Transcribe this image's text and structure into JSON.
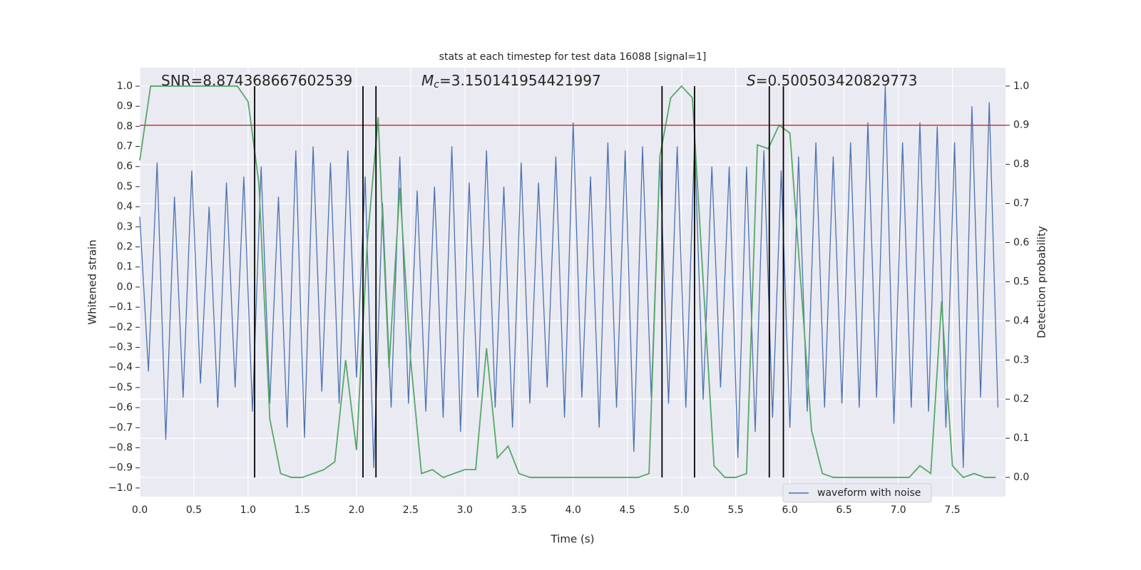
{
  "chart_data": {
    "type": "line",
    "title": "stats at each timestep for test data 16088 [signal=1]",
    "xlabel": "Time (s)",
    "ylabel": "Whitened strain",
    "y2label": "Detection probability",
    "annotations": [
      {
        "text": "SNR=8.874368667602539"
      },
      {
        "symbol": "M",
        "subscript": "c",
        "text": "=3.150141954421997"
      },
      {
        "symbol": "S",
        "text": "=0.500503420829773"
      }
    ],
    "xlim": [
      0,
      7.99
    ],
    "xticks": [
      {
        "value": 0,
        "label": "0.0"
      },
      0.5,
      {
        "value": 1,
        "label": "1.0"
      },
      1.5,
      {
        "value": 2,
        "label": "2.0"
      },
      2.5,
      {
        "value": 3,
        "label": "3.0"
      },
      3.5,
      {
        "value": 4,
        "label": "4.0"
      },
      4.5,
      {
        "value": 5,
        "label": "5.0"
      },
      5.5,
      {
        "value": 6,
        "label": "6.0"
      },
      6.5,
      {
        "value": 7,
        "label": "7.0"
      },
      7.5
    ],
    "ylim": [
      -1.043,
      1.092
    ],
    "yticks": [
      {
        "value": -1,
        "label": "−1.0"
      },
      {
        "value": -0.9,
        "label": "−0.9"
      },
      {
        "value": -0.8,
        "label": "−0.8"
      },
      {
        "value": -0.7,
        "label": "−0.7"
      },
      {
        "value": -0.6,
        "label": "−0.6"
      },
      {
        "value": -0.5,
        "label": "−0.5"
      },
      {
        "value": -0.4,
        "label": "−0.4"
      },
      {
        "value": -0.3,
        "label": "−0.3"
      },
      {
        "value": -0.2,
        "label": "−0.2"
      },
      {
        "value": -0.1,
        "label": "−0.1"
      },
      {
        "value": 0,
        "label": "0.0"
      },
      0.1,
      0.2,
      0.3,
      0.4,
      0.5,
      0.6,
      0.7,
      0.8,
      0.9,
      {
        "value": 1,
        "label": "1.0"
      }
    ],
    "y2lim": [
      -0.049,
      1.047
    ],
    "y2ticks": [
      {
        "value": 0,
        "label": "0.0"
      },
      0.1,
      0.2,
      0.3,
      0.4,
      0.5,
      0.6,
      0.7,
      0.8,
      0.9,
      {
        "value": 1,
        "label": "1.0"
      }
    ],
    "grid": true,
    "legend": "lower right",
    "threshold": 0.9,
    "threshold_color": "#c03d3e",
    "vlines": [
      1.06,
      2.06,
      2.18,
      4.82,
      5.12,
      5.81,
      5.94
    ],
    "vline_color": "#000000",
    "series": [
      {
        "name": "waveform with noise",
        "color": "#4c72b0",
        "x": [
          0,
          0.08,
          0.16,
          0.24,
          0.32,
          0.4,
          0.48,
          0.56,
          0.64,
          0.72,
          0.8,
          0.88,
          0.96,
          1.04,
          1.12,
          1.2,
          1.28,
          1.36,
          1.44,
          1.52,
          1.6,
          1.68,
          1.76,
          1.84,
          1.92,
          2,
          2.08,
          2.16,
          2.24,
          2.32,
          2.4,
          2.48,
          2.56,
          2.64,
          2.72,
          2.8,
          2.88,
          2.96,
          3.04,
          3.12,
          3.2,
          3.28,
          3.36,
          3.44,
          3.52,
          3.6,
          3.68,
          3.76,
          3.84,
          3.92,
          4,
          4.08,
          4.16,
          4.24,
          4.32,
          4.4,
          4.48,
          4.56,
          4.64,
          4.72,
          4.8,
          4.88,
          4.96,
          5.04,
          5.12,
          5.2,
          5.28,
          5.36,
          5.44,
          5.52,
          5.6,
          5.68,
          5.76,
          5.84,
          5.92,
          6,
          6.08,
          6.16,
          6.24,
          6.32,
          6.4,
          6.48,
          6.56,
          6.64,
          6.72,
          6.8,
          6.88,
          6.96,
          7.04,
          7.12,
          7.2,
          7.28,
          7.36,
          7.44,
          7.52,
          7.6,
          7.68,
          7.76,
          7.84,
          7.92
        ],
        "values": [
          0.35,
          -0.42,
          0.62,
          -0.76,
          0.45,
          -0.55,
          0.58,
          -0.48,
          0.4,
          -0.6,
          0.52,
          -0.5,
          0.55,
          -0.62,
          0.6,
          -0.58,
          0.45,
          -0.7,
          0.68,
          -0.75,
          0.7,
          -0.52,
          0.62,
          -0.58,
          0.68,
          -0.45,
          0.55,
          -0.9,
          0.42,
          -0.6,
          0.65,
          -0.58,
          0.48,
          -0.62,
          0.5,
          -0.65,
          0.7,
          -0.72,
          0.52,
          -0.55,
          0.68,
          -0.6,
          0.5,
          -0.7,
          0.62,
          -0.58,
          0.52,
          -0.5,
          0.65,
          -0.65,
          0.82,
          -0.55,
          0.55,
          -0.7,
          0.72,
          -0.6,
          0.68,
          -0.82,
          0.7,
          -0.55,
          0.65,
          -0.58,
          0.7,
          -0.6,
          0.72,
          -0.56,
          0.6,
          -0.5,
          0.6,
          -0.85,
          0.6,
          -0.72,
          0.68,
          -0.65,
          0.58,
          -0.7,
          0.65,
          -0.62,
          0.72,
          -0.6,
          0.65,
          -0.58,
          0.72,
          -0.6,
          0.82,
          -0.55,
          1.0,
          -0.68,
          0.72,
          -0.6,
          0.82,
          -0.62,
          0.8,
          -0.7,
          0.72,
          -0.9,
          0.9,
          -0.55,
          0.92,
          -0.6
        ]
      },
      {
        "color": "#55a868",
        "axis": "y2",
        "x": [
          0,
          0.1,
          0.2,
          0.3,
          0.4,
          0.5,
          0.6,
          0.7,
          0.8,
          0.9,
          1,
          1.1,
          1.2,
          1.3,
          1.4,
          1.5,
          1.6,
          1.7,
          1.8,
          1.9,
          2,
          2.1,
          2.2,
          2.3,
          2.4,
          2.5,
          2.6,
          2.7,
          2.8,
          2.9,
          3,
          3.1,
          3.2,
          3.3,
          3.4,
          3.5,
          3.6,
          3.7,
          3.8,
          3.9,
          4,
          4.1,
          4.2,
          4.3,
          4.4,
          4.5,
          4.6,
          4.7,
          4.8,
          4.9,
          5,
          5.1,
          5.2,
          5.3,
          5.4,
          5.5,
          5.6,
          5.7,
          5.8,
          5.9,
          6,
          6.1,
          6.2,
          6.3,
          6.4,
          6.5,
          6.6,
          6.7,
          6.8,
          6.9,
          7,
          7.1,
          7.2,
          7.3,
          7.4,
          7.5,
          7.6,
          7.7,
          7.8,
          7.9
        ],
        "values": [
          0.81,
          1.0,
          1.0,
          1.0,
          1.0,
          1.0,
          1.0,
          1.0,
          1.0,
          1.0,
          0.96,
          0.75,
          0.15,
          0.01,
          0.0,
          0.0,
          0.01,
          0.02,
          0.04,
          0.3,
          0.07,
          0.6,
          0.92,
          0.28,
          0.74,
          0.3,
          0.01,
          0.02,
          0.0,
          0.01,
          0.02,
          0.02,
          0.33,
          0.05,
          0.08,
          0.01,
          0.0,
          0.0,
          0.0,
          0.0,
          0.0,
          0.0,
          0.0,
          0.0,
          0.0,
          0.0,
          0.0,
          0.01,
          0.82,
          0.97,
          1.0,
          0.97,
          0.5,
          0.03,
          0.0,
          0.0,
          0.01,
          0.85,
          0.84,
          0.9,
          0.88,
          0.5,
          0.12,
          0.01,
          0.0,
          0.0,
          0.0,
          0.0,
          0.0,
          0.0,
          0.0,
          0.0,
          0.03,
          0.01,
          0.45,
          0.03,
          0.0,
          0.01,
          0.0,
          0.0
        ]
      }
    ]
  }
}
